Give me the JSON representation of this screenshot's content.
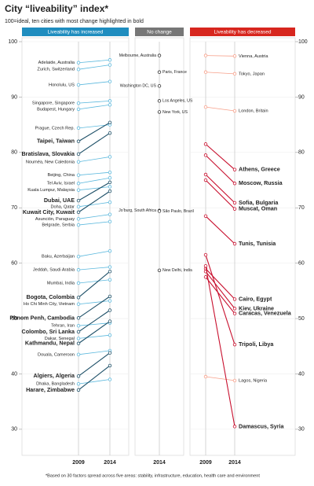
{
  "title": "City “liveability” index*",
  "subtitle": "100=ideal, ten cities with most change highlighted in bold",
  "footnote": "*Based on 30 factors spread across five areas: stability, infrastructure, education, health care and environment",
  "chart_data": [
    {
      "type": "slope",
      "title": "Liveability has increased",
      "header_color": "#1f8dbf",
      "categories": [
        "2009",
        "2014"
      ],
      "ylim": [
        27,
        100
      ],
      "yticks": [
        30,
        40,
        50,
        60,
        70,
        80,
        90,
        100
      ],
      "color": "#5bb8dd",
      "highlight_color": "#1d4f67",
      "series": [
        {
          "name": "Adelaide, Australia",
          "values": [
            96.2,
            96.7
          ]
        },
        {
          "name": "Zurich, Switzerland",
          "values": [
            95.0,
            95.8
          ]
        },
        {
          "name": "Honolulu, US",
          "values": [
            92.2,
            92.8
          ]
        },
        {
          "name": "Singapore, Singapore",
          "values": [
            88.9,
            89.3
          ]
        },
        {
          "name": "Budapest, Hungary",
          "values": [
            87.8,
            88.6
          ]
        },
        {
          "name": "Prague, Czech Rep.",
          "values": [
            84.4,
            85.0
          ]
        },
        {
          "name": "Taipei, Taiwan",
          "values": [
            82.0,
            85.4
          ],
          "highlight": true
        },
        {
          "name": "Bratislava, Slovakia",
          "values": [
            79.7,
            83.5
          ],
          "highlight": true
        },
        {
          "name": "Nouméa, New Caledonia",
          "values": [
            78.3,
            79.2
          ]
        },
        {
          "name": "Beijing, China",
          "values": [
            75.9,
            76.4
          ]
        },
        {
          "name": "Tel Aviv, Israel",
          "values": [
            74.4,
            75.4
          ]
        },
        {
          "name": "Kuala Lumpur, Malaysia",
          "values": [
            73.2,
            73.8
          ]
        },
        {
          "name": "Dubai, UAE",
          "values": [
            71.3,
            74.6
          ],
          "highlight": true
        },
        {
          "name": "Doha, Qatar",
          "values": [
            70.2,
            71.0
          ]
        },
        {
          "name": "Kuwait City, Kuwait",
          "values": [
            69.2,
            73.0
          ],
          "highlight": true
        },
        {
          "name": "Asunción, Paraguay",
          "values": [
            68.0,
            68.8
          ]
        },
        {
          "name": "Belgrade, Serbia",
          "values": [
            66.9,
            67.5
          ]
        },
        {
          "name": "Baku, Azerbaijan",
          "values": [
            61.2,
            62.2
          ]
        },
        {
          "name": "Jeddah, Saudi Arabia",
          "values": [
            58.8,
            59.3
          ]
        },
        {
          "name": "Mumbai, India",
          "values": [
            56.4,
            57.0
          ]
        },
        {
          "name": "Bogota, Colombia",
          "values": [
            53.8,
            58.5
          ],
          "highlight": true
        },
        {
          "name": "Ho Chi Minh City, Vietnam",
          "values": [
            52.6,
            53.2
          ]
        },
        {
          "name": "Phnom Penh, Cambodia",
          "values": [
            50.1,
            54.0
          ],
          "highlight": true
        },
        {
          "name": "Tehran, Iran",
          "values": [
            48.7,
            49.2
          ]
        },
        {
          "name": "Colombo, Sri Lanka",
          "values": [
            47.6,
            51.5
          ],
          "highlight": true
        },
        {
          "name": "Dakar, Senegal",
          "values": [
            46.4,
            47.0
          ]
        },
        {
          "name": "Kathmandu, Nepal",
          "values": [
            45.5,
            49.5
          ],
          "highlight": true
        },
        {
          "name": "Douala, Cameroon",
          "values": [
            43.5,
            44.2
          ]
        },
        {
          "name": "Algiers, Algeria",
          "values": [
            39.6,
            43.8
          ],
          "highlight": true
        },
        {
          "name": "Dhaka, Bangladesh",
          "values": [
            38.2,
            39.0
          ]
        },
        {
          "name": "Harare, Zimbabwe",
          "values": [
            37.1,
            41.5
          ],
          "highlight": true
        }
      ]
    },
    {
      "type": "dots",
      "title": "No change",
      "header_color": "#777777",
      "categories": [
        "2014"
      ],
      "ylim": [
        27,
        100
      ],
      "color": "#333333",
      "series": [
        {
          "name": "Melbourne, Australia",
          "values": [
            97.5
          ]
        },
        {
          "name": "Paris, France",
          "values": [
            94.5
          ]
        },
        {
          "name": "Washington DC, US",
          "values": [
            92.0
          ]
        },
        {
          "name": "Los Angeles, US",
          "values": [
            89.3
          ]
        },
        {
          "name": "New York, US",
          "values": [
            87.3
          ]
        },
        {
          "name": "Jo’burg, South Africa",
          "values": [
            69.5
          ]
        },
        {
          "name": "São Paulo, Brazil",
          "values": [
            69.4
          ]
        },
        {
          "name": "New Delhi, India",
          "values": [
            58.7
          ]
        }
      ]
    },
    {
      "type": "slope",
      "title": "Liveability has decreased",
      "header_color": "#d7261e",
      "categories": [
        "2009",
        "2014"
      ],
      "ylim": [
        27,
        100
      ],
      "yticks": [
        30,
        40,
        50,
        60,
        70,
        80,
        90,
        100
      ],
      "color": "#f7a08a",
      "highlight_color": "#c8102e",
      "series": [
        {
          "name": "Vienna, Austria",
          "values": [
            97.5,
            97.4
          ]
        },
        {
          "name": "Tokyo, Japan",
          "values": [
            94.5,
            94.2
          ]
        },
        {
          "name": "London, Britain",
          "values": [
            88.2,
            87.5
          ]
        },
        {
          "name": "Athens, Greece",
          "values": [
            81.5,
            76.9
          ],
          "highlight": true
        },
        {
          "name": "Moscow, Russia",
          "values": [
            79.5,
            74.4
          ],
          "highlight": true
        },
        {
          "name": "Sofia, Bulgaria",
          "values": [
            76.0,
            70.9
          ],
          "highlight": true
        },
        {
          "name": "Muscat, Oman",
          "values": [
            75.0,
            69.8
          ],
          "highlight": true
        },
        {
          "name": "Tunis, Tunisia",
          "values": [
            68.5,
            63.5
          ],
          "highlight": true
        },
        {
          "name": "Cairo, Egypt",
          "values": [
            59.0,
            53.5
          ],
          "highlight": true
        },
        {
          "name": "Kiev, Ukraine",
          "values": [
            58.5,
            51.8
          ],
          "highlight": true
        },
        {
          "name": "Caracas, Venezuela",
          "values": [
            57.5,
            50.9
          ],
          "highlight": true
        },
        {
          "name": "Tripoli, Libya",
          "values": [
            61.5,
            45.3
          ],
          "highlight": true
        },
        {
          "name": "Lagos, Nigeria",
          "values": [
            39.5,
            38.8
          ]
        },
        {
          "name": "Damascus, Syria",
          "values": [
            59.5,
            30.5
          ],
          "highlight": true
        }
      ]
    }
  ]
}
